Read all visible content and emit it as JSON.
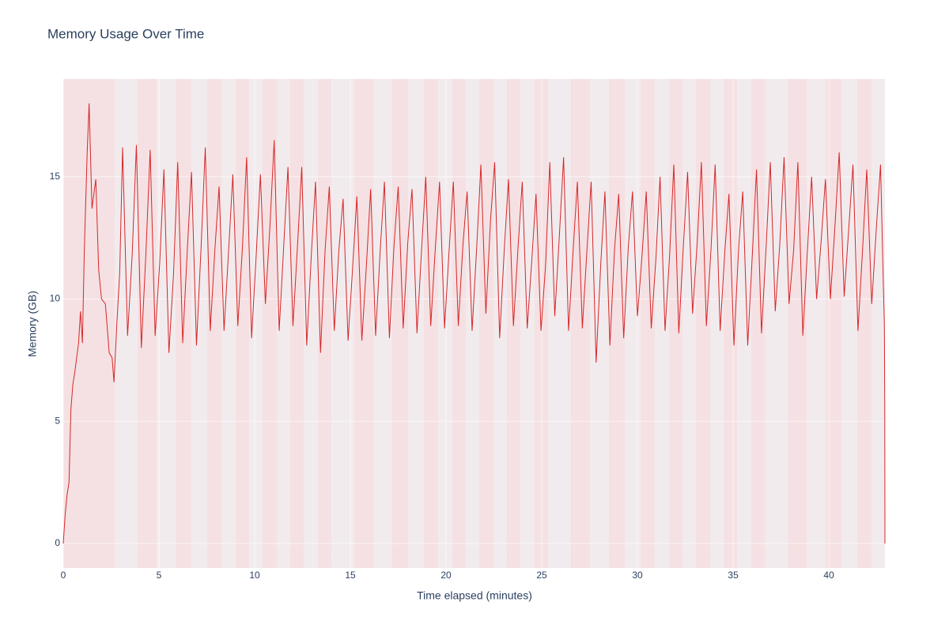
{
  "chart_data": {
    "type": "line",
    "title": "Memory Usage Over Time",
    "x_label": "Time elapsed (minutes)",
    "y_label": "Memory (GB)",
    "color": "#d62728",
    "xlim": [
      0,
      42.93
    ],
    "ylim": [
      -1,
      19
    ],
    "xticks": [
      0,
      5,
      10,
      15,
      20,
      25,
      30,
      35,
      40
    ],
    "yticks": [
      0,
      5,
      10,
      15
    ],
    "grid": true,
    "x": [
      0,
      0.1,
      0.2,
      0.3,
      0.4,
      0.5,
      0.6,
      0.8,
      0.9,
      1.0,
      1.1,
      1.25,
      1.35,
      1.5,
      1.7,
      1.85,
      2.0,
      2.2,
      2.4,
      2.55,
      2.65,
      2.8,
      2.95,
      3.1,
      3.36,
      3.6,
      3.82,
      4.08,
      4.32,
      4.54,
      4.8,
      5.04,
      5.26,
      5.52,
      5.76,
      5.98,
      6.24,
      6.48,
      6.7,
      6.96,
      7.2,
      7.42,
      7.68,
      7.92,
      8.14,
      8.4,
      8.64,
      8.86,
      9.12,
      9.36,
      9.58,
      9.84,
      10.08,
      10.3,
      10.56,
      10.8,
      11.02,
      11.28,
      11.52,
      11.74,
      12.0,
      12.24,
      12.46,
      12.72,
      12.96,
      13.18,
      13.44,
      13.68,
      13.9,
      14.16,
      14.4,
      14.62,
      14.88,
      15.12,
      15.34,
      15.6,
      15.84,
      16.06,
      16.32,
      16.56,
      16.78,
      17.04,
      17.28,
      17.5,
      17.76,
      18.0,
      18.22,
      18.48,
      18.72,
      18.94,
      19.2,
      19.44,
      19.66,
      19.92,
      20.16,
      20.38,
      20.64,
      20.88,
      21.1,
      21.36,
      21.6,
      21.82,
      22.08,
      22.32,
      22.54,
      22.8,
      23.04,
      23.26,
      23.52,
      23.76,
      23.98,
      24.24,
      24.48,
      24.7,
      24.96,
      25.2,
      25.42,
      25.68,
      25.92,
      26.14,
      26.4,
      26.64,
      26.86,
      27.12,
      27.36,
      27.58,
      27.84,
      28.08,
      28.3,
      28.56,
      28.8,
      29.02,
      29.28,
      29.52,
      29.74,
      30.0,
      30.24,
      30.46,
      30.72,
      30.96,
      31.18,
      31.44,
      31.68,
      31.9,
      32.16,
      32.4,
      32.62,
      32.88,
      33.12,
      33.34,
      33.6,
      33.84,
      34.06,
      34.32,
      34.56,
      34.78,
      35.04,
      35.28,
      35.5,
      35.76,
      36.0,
      36.22,
      36.48,
      36.72,
      36.94,
      37.2,
      37.44,
      37.66,
      37.92,
      38.16,
      38.38,
      38.64,
      38.88,
      39.1,
      39.36,
      39.6,
      39.82,
      40.08,
      40.32,
      40.54,
      40.8,
      41.04,
      41.26,
      41.52,
      41.76,
      41.98,
      42.24,
      42.48,
      42.7,
      42.85,
      42.9,
      42.92,
      42.93
    ],
    "values": [
      0,
      1.2,
      2.0,
      2.5,
      5.5,
      6.5,
      7.0,
      8.2,
      9.5,
      8.2,
      12,
      16,
      18,
      13.7,
      14.9,
      11.2,
      10,
      9.8,
      7.8,
      7.6,
      6.6,
      9,
      11.1,
      16.2,
      8.5,
      11.8,
      16.3,
      8.0,
      11.9,
      16.1,
      8.5,
      11.5,
      15.3,
      7.8,
      11.0,
      15.6,
      8.2,
      12.0,
      15.2,
      8.1,
      12.1,
      16.2,
      8.7,
      12.0,
      14.6,
      8.7,
      12.0,
      15.1,
      8.9,
      12.1,
      15.8,
      8.4,
      11.8,
      15.1,
      9.8,
      13.0,
      16.5,
      8.7,
      12.2,
      15.4,
      8.9,
      12.2,
      15.4,
      8.1,
      11.8,
      14.8,
      7.8,
      12.0,
      14.6,
      8.7,
      12.0,
      14.1,
      8.3,
      11.3,
      14.2,
      8.3,
      11.4,
      14.5,
      8.5,
      12.0,
      14.8,
      8.4,
      12.2,
      14.6,
      8.8,
      12.3,
      14.5,
      8.6,
      12.0,
      15.0,
      8.9,
      12.1,
      14.8,
      8.8,
      12.0,
      14.8,
      8.9,
      12.2,
      14.4,
      8.7,
      12.1,
      15.5,
      9.4,
      13.2,
      15.6,
      8.4,
      12.0,
      14.9,
      8.9,
      12.1,
      14.8,
      8.8,
      11.6,
      14.3,
      8.7,
      11.4,
      15.6,
      9.3,
      12.6,
      15.8,
      8.7,
      12.0,
      14.8,
      8.8,
      12.0,
      14.8,
      7.4,
      11.4,
      14.4,
      8.1,
      12.0,
      14.3,
      8.4,
      12.1,
      14.4,
      9.3,
      11.8,
      14.4,
      8.8,
      11.6,
      15.0,
      8.7,
      11.8,
      15.5,
      8.6,
      12.2,
      15.2,
      9.4,
      12.3,
      15.6,
      8.9,
      12.0,
      15.5,
      8.7,
      11.9,
      14.3,
      8.1,
      12.0,
      14.4,
      8.1,
      11.8,
      15.3,
      8.6,
      12.1,
      15.6,
      9.5,
      12.3,
      15.8,
      9.8,
      12.0,
      15.6,
      8.5,
      12.0,
      15.0,
      10.0,
      12.4,
      14.9,
      10.0,
      13.0,
      16.0,
      10.1,
      12.9,
      15.5,
      8.7,
      12.0,
      15.3,
      9.8,
      12.9,
      15.5,
      10.5,
      9.0,
      5.7,
      0
    ]
  }
}
